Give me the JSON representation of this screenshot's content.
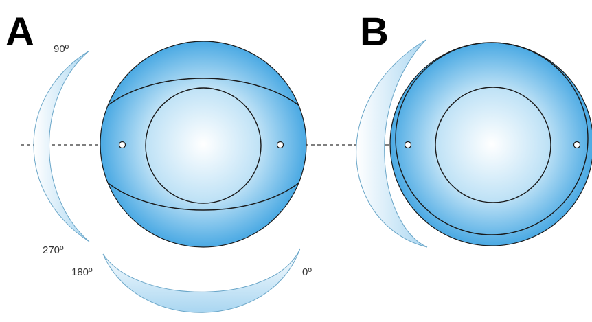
{
  "panels": [
    {
      "letter": "A",
      "angles": {
        "top": "90º",
        "left": "270º",
        "bottom_left": "180º",
        "bottom_right": "0º"
      }
    },
    {
      "letter": "B"
    }
  ],
  "colors": {
    "lens_edge": "#4aa9e3",
    "lens_center": "#ffffff",
    "line": "#1a1a1a",
    "dashed_axis": "#333333",
    "arc_fill": "#bfe0f3",
    "arc_stroke": "#6aa6c8"
  }
}
